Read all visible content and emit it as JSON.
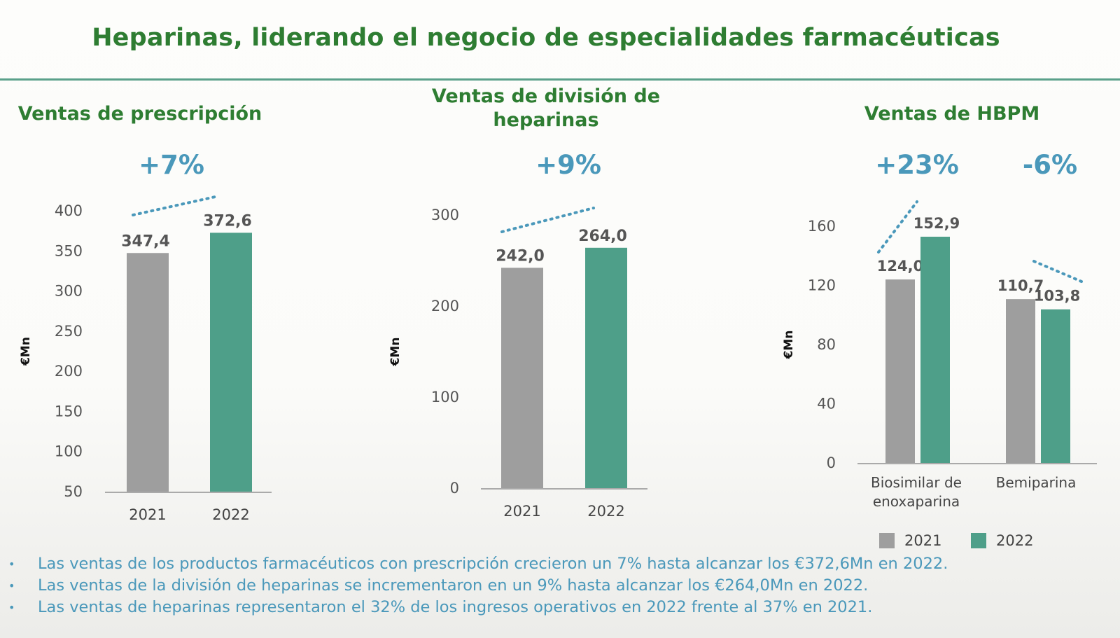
{
  "title": "Heparinas, liderando el negocio de especialidades farmacéuticas",
  "colors": {
    "y2021": "#9e9e9e",
    "y2022": "#4e9f89",
    "title": "#2e7d32",
    "accent": "#4a98ba"
  },
  "legend": [
    {
      "label": "2021",
      "color": "#9e9e9e"
    },
    {
      "label": "2022",
      "color": "#4e9f89"
    }
  ],
  "bullets": [
    "Las ventas de los productos farmacéuticos con prescripción crecieron un 7% hasta alcanzar los €372,6Mn en 2022.",
    "Las ventas de la división de heparinas se incrementaron en un 9% hasta alcanzar los €264,0Mn en 2022.",
    "Las ventas de heparinas representaron el 32% de los ingresos operativos en 2022 frente al 37% en 2021."
  ],
  "chart_data": [
    {
      "type": "bar",
      "title": "Ventas de prescripción",
      "growth": "+7%",
      "ylabel": "€Mn",
      "ylim": [
        50,
        400
      ],
      "yticks": [
        "50",
        "100",
        "150",
        "200",
        "250",
        "300",
        "350",
        "400"
      ],
      "categories": [
        "2021",
        "2022"
      ],
      "values": [
        347.4,
        372.6
      ],
      "value_labels": [
        "347,4",
        "372,6"
      ]
    },
    {
      "type": "bar",
      "title": "Ventas de división de heparinas",
      "growth": "+9%",
      "ylabel": "€Mn",
      "ylim": [
        0,
        300
      ],
      "yticks": [
        "0",
        "100",
        "200",
        "300"
      ],
      "categories": [
        "2021",
        "2022"
      ],
      "values": [
        242.0,
        264.0
      ],
      "value_labels": [
        "242,0",
        "264,0"
      ]
    },
    {
      "type": "bar",
      "title": "Ventas de HBPM",
      "ylabel": "€Mn",
      "ylim": [
        0,
        160
      ],
      "yticks": [
        "0",
        "40",
        "80",
        "120",
        "160"
      ],
      "categories": [
        "Biosimilar de enoxaparina",
        "Bemiparina"
      ],
      "category_lines": [
        [
          "Biosimilar de",
          "enoxaparina"
        ],
        [
          "Bemiparina"
        ]
      ],
      "growth": [
        "+23%",
        "-6%"
      ],
      "series": [
        {
          "name": "2021",
          "values": [
            124.0,
            110.7
          ],
          "labels": [
            "124,0",
            "110,7"
          ]
        },
        {
          "name": "2022",
          "values": [
            152.9,
            103.8
          ],
          "labels": [
            "152,9",
            "103,8"
          ]
        }
      ]
    }
  ]
}
